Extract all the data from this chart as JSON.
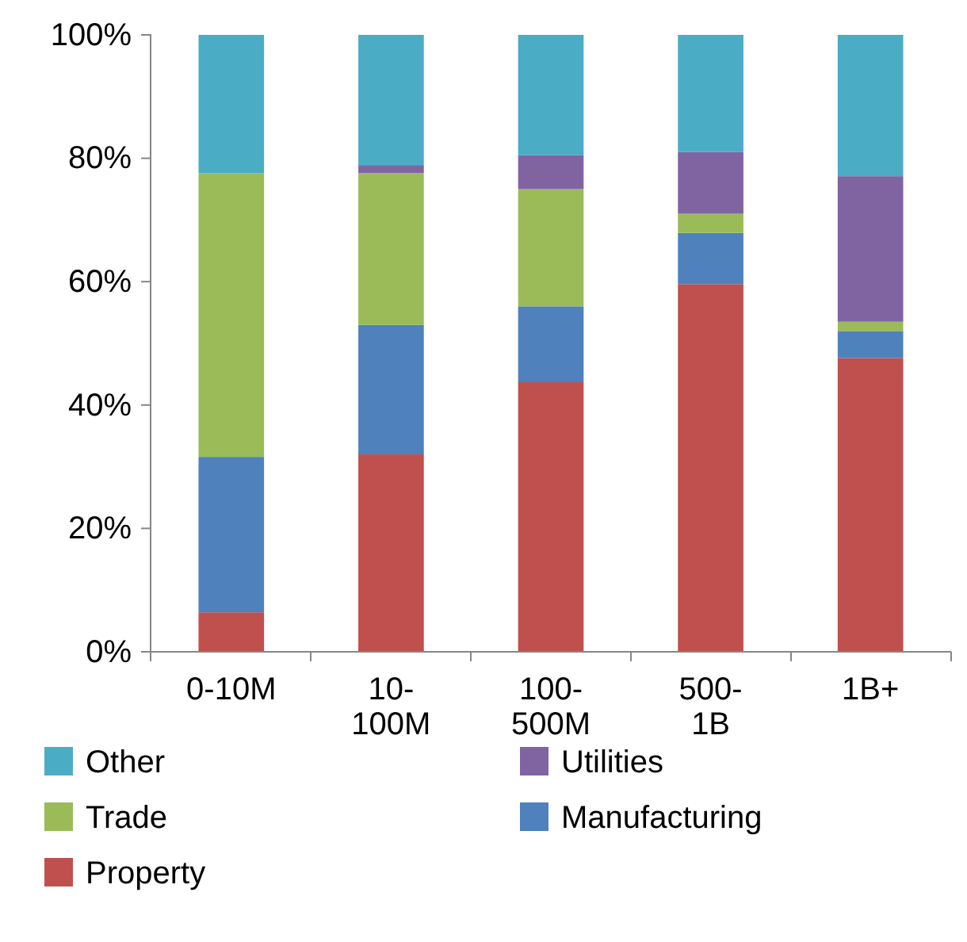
{
  "chart_data": {
    "type": "bar",
    "stacked": true,
    "categories": [
      "0-10M",
      "10- 100M",
      "100- 500M",
      "500- 1B",
      "1B+"
    ],
    "series": [
      {
        "name": "Property",
        "color": "#c0504d",
        "values": [
          6.4,
          32,
          43.7,
          59.6,
          47.6
        ]
      },
      {
        "name": "Manufacturing",
        "color": "#4f81bd",
        "values": [
          25.2,
          21,
          12.3,
          8.3,
          4.4
        ]
      },
      {
        "name": "Trade",
        "color": "#9bbb59",
        "values": [
          46,
          24.6,
          19,
          3.1,
          1.5
        ]
      },
      {
        "name": "Utilities",
        "color": "#8064a2",
        "values": [
          0,
          1.3,
          5.5,
          10,
          23.6
        ]
      },
      {
        "name": "Other",
        "color": "#4bacc6",
        "values": [
          22.4,
          21.1,
          19.5,
          19,
          22.9
        ]
      }
    ],
    "ylim": [
      0,
      100
    ],
    "yticks": [
      {
        "value": 0,
        "label": "0%"
      },
      {
        "value": 20,
        "label": "20%"
      },
      {
        "value": 40,
        "label": "40%"
      },
      {
        "value": 60,
        "label": "60%"
      },
      {
        "value": 80,
        "label": "80%"
      },
      {
        "value": 100,
        "label": "100%"
      }
    ],
    "grid": false,
    "legend": "bottom"
  }
}
